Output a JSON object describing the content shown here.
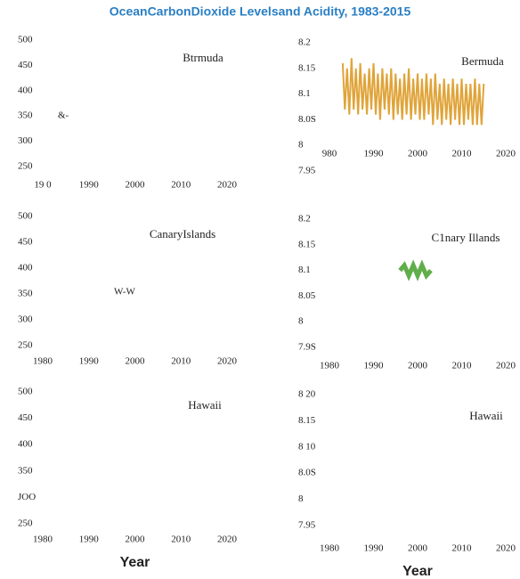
{
  "chart_data": [
    {
      "type": "line",
      "title": "OceanCarbonDioxide Levelsand Acidity, 1983-2015",
      "label": "Btrmuda",
      "annotation": "&-",
      "xlim": [
        1980,
        2020
      ],
      "xticks": [
        {
          "value": 1980,
          "label": "19 0"
        },
        1990,
        2000,
        2010,
        2020
      ],
      "ylim": [
        250,
        500
      ],
      "yticks": [
        250,
        300,
        350,
        400,
        450,
        500
      ],
      "series": []
    },
    {
      "type": "line",
      "label": "Bermuda",
      "xlim": [
        1980,
        2020
      ],
      "xticks": [
        {
          "value": 1980,
          "label": "980"
        },
        1990,
        2000,
        2010,
        2020
      ],
      "ylim": [
        7.95,
        8.2
      ],
      "yticks": [
        7.95,
        8,
        {
          "value": 8.05,
          "label": "8.0S"
        },
        8.1,
        8.15,
        8.2
      ],
      "series": [
        {
          "color": "#e0a43a",
          "x": [
            1983,
            1983.5,
            1984,
            1984.5,
            1985,
            1985.5,
            1986,
            1986.5,
            1987,
            1987.5,
            1988,
            1988.5,
            1989,
            1989.5,
            1990,
            1990.5,
            1991,
            1991.5,
            1992,
            1992.5,
            1993,
            1993.5,
            1994,
            1994.5,
            1995,
            1995.5,
            1996,
            1996.5,
            1997,
            1997.5,
            1998,
            1998.5,
            1999,
            1999.5,
            2000,
            2000.5,
            2001,
            2001.5,
            2002,
            2002.5,
            2003,
            2003.5,
            2004,
            2004.5,
            2005,
            2005.5,
            2006,
            2006.5,
            2007,
            2007.5,
            2008,
            2008.5,
            2009,
            2009.5,
            2010,
            2010.5,
            2011,
            2011.5,
            2012,
            2012.5,
            2013,
            2013.5,
            2014,
            2014.5,
            2015
          ],
          "values": [
            8.16,
            8.07,
            8.15,
            8.06,
            8.17,
            8.07,
            8.15,
            8.06,
            8.16,
            8.07,
            8.14,
            8.06,
            8.15,
            8.07,
            8.16,
            8.06,
            8.14,
            8.05,
            8.15,
            8.07,
            8.14,
            8.06,
            8.15,
            8.05,
            8.14,
            8.06,
            8.13,
            8.05,
            8.14,
            8.06,
            8.15,
            8.05,
            8.13,
            8.06,
            8.14,
            8.05,
            8.13,
            8.05,
            8.14,
            8.06,
            8.13,
            8.04,
            8.14,
            8.05,
            8.12,
            8.04,
            8.13,
            8.05,
            8.12,
            8.04,
            8.13,
            8.05,
            8.12,
            8.04,
            8.13,
            8.04,
            8.12,
            8.05,
            8.12,
            8.04,
            8.13,
            8.04,
            8.12,
            8.04,
            8.12
          ]
        }
      ]
    },
    {
      "type": "line",
      "label": "CanaryIslands",
      "annotation": "W-W",
      "xlim": [
        1980,
        2020
      ],
      "xticks": [
        1980,
        1990,
        2000,
        2010,
        2020
      ],
      "ylim": [
        250,
        500
      ],
      "yticks": [
        250,
        300,
        350,
        400,
        450,
        500
      ],
      "series": []
    },
    {
      "type": "line",
      "label": "C1nary Illands",
      "xlim": [
        1980,
        2020
      ],
      "xticks": [
        1980,
        1990,
        2000,
        2010,
        2020
      ],
      "ylim": [
        7.95,
        8.2
      ],
      "yticks": [
        {
          "value": 7.95,
          "label": "7.9S"
        },
        8,
        8.05,
        8.1,
        8.15,
        8.2
      ],
      "series": [
        {
          "color": "#5fae4a",
          "x": [
            1996,
            1997,
            1998,
            1999,
            2000,
            2001,
            2002,
            2003
          ],
          "values": [
            8.1,
            8.11,
            8.09,
            8.11,
            8.09,
            8.11,
            8.09,
            8.1
          ]
        }
      ]
    },
    {
      "type": "line",
      "label": "Hawaii",
      "xlabel": "Year",
      "xlim": [
        1980,
        2020
      ],
      "xticks": [
        1980,
        1990,
        2000,
        2010,
        2020
      ],
      "ylim": [
        250,
        500
      ],
      "yticks": [
        250,
        {
          "value": 300,
          "label": "JOO"
        },
        350,
        400,
        450,
        500
      ],
      "series": []
    },
    {
      "type": "line",
      "label": "Hawaii",
      "xlabel": "Year",
      "xlim": [
        1980,
        2020
      ],
      "xticks": [
        1980,
        1990,
        2000,
        2010,
        2020
      ],
      "ylim": [
        7.95,
        8.2
      ],
      "yticks": [
        7.95,
        8,
        {
          "value": 8.05,
          "label": "8.0S"
        },
        {
          "value": 8.1,
          "label": "8 10"
        },
        8.15,
        {
          "value": 8.2,
          "label": "8 20"
        }
      ],
      "series": []
    }
  ]
}
